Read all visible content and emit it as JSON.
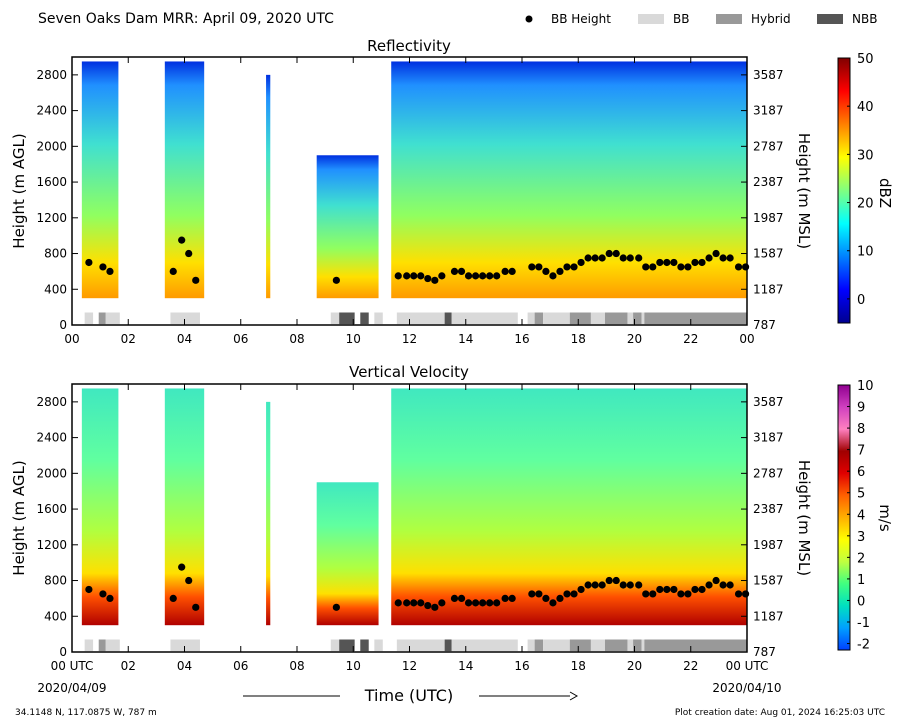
{
  "header": {
    "title": "Seven Oaks Dam MRR:  April 09, 2020 UTC",
    "legend": [
      {
        "key": "bb_height",
        "label": "BB Height",
        "color": "#000000",
        "marker": "dot"
      },
      {
        "key": "bb",
        "label": "BB",
        "color": "#d9d9d9",
        "marker": "box"
      },
      {
        "key": "hybrid",
        "label": "Hybrid",
        "color": "#999999",
        "marker": "box"
      },
      {
        "key": "nbb",
        "label": "NBB",
        "color": "#555555",
        "marker": "box"
      }
    ]
  },
  "footer": {
    "location": "34.1148 N, 117.0875 W, 787 m",
    "creation": "Plot creation date: Aug 01, 2024 16:25:03 UTC",
    "xlabel": "Time (UTC)",
    "start_date": "2020/04/09",
    "end_date": "2020/04/10"
  },
  "chart_data": [
    {
      "type": "heatmap",
      "title": "Reflectivity",
      "ylabel": "Height (m AGL)",
      "y2label": "Height (m MSL)",
      "colorbar_label": "dBZ",
      "colorbar_ticks": [
        0,
        10,
        20,
        30,
        40,
        50
      ],
      "colorbar_range": [
        -5,
        50
      ],
      "colormap": [
        "#00008f",
        "#0000ff",
        "#0080ff",
        "#00ffff",
        "#80ff80",
        "#ffff00",
        "#ff8000",
        "#ff0000",
        "#800000"
      ],
      "x_ticks": [
        "00",
        "02",
        "04",
        "06",
        "08",
        "10",
        "12",
        "14",
        "16",
        "18",
        "20",
        "22",
        "00"
      ],
      "xlim": [
        0,
        24
      ],
      "y_ticks": [
        0,
        400,
        800,
        1200,
        1600,
        2000,
        2400,
        2800
      ],
      "y2_ticks": [
        787,
        1187,
        1587,
        1987,
        2387,
        2787,
        3187,
        3587
      ],
      "ylim": [
        0,
        3000
      ]
    },
    {
      "type": "heatmap",
      "title": "Vertical Velocity",
      "ylabel": "Height (m AGL)",
      "y2label": "Height (m MSL)",
      "colorbar_label": "m/s",
      "colorbar_ticks": [
        -2,
        -1,
        0,
        1,
        2,
        3,
        4,
        5,
        6,
        7,
        8,
        9,
        10
      ],
      "colorbar_range": [
        -2.3,
        10
      ],
      "colormap": [
        "#0040ff",
        "#00a0ff",
        "#00e0c0",
        "#40ff80",
        "#c0ff40",
        "#ffff00",
        "#ffb000",
        "#ff6000",
        "#e00000",
        "#a00000",
        "#ff80c0",
        "#d040c0",
        "#900090"
      ],
      "x_ticks": [
        "00 UTC",
        "02",
        "04",
        "06",
        "08",
        "10",
        "12",
        "14",
        "16",
        "18",
        "20",
        "22",
        "00 UTC"
      ],
      "xlim": [
        0,
        24
      ],
      "y_ticks": [
        0,
        400,
        800,
        1200,
        1600,
        2000,
        2400,
        2800
      ],
      "y2_ticks": [
        787,
        1187,
        1587,
        1987,
        2387,
        2787,
        3187,
        3587
      ],
      "ylim": [
        0,
        3000
      ]
    }
  ],
  "bb_height": {
    "t": [
      0.6,
      1.1,
      1.35,
      3.6,
      3.9,
      4.15,
      4.4,
      9.4,
      11.6,
      11.9,
      12.15,
      12.4,
      12.65,
      12.9,
      13.15,
      13.6,
      13.85,
      14.1,
      14.35,
      14.6,
      14.85,
      15.1,
      15.4,
      15.65,
      16.35,
      16.6,
      16.85,
      17.1,
      17.35,
      17.6,
      17.85,
      18.1,
      18.35,
      18.6,
      18.85,
      19.1,
      19.35,
      19.6,
      19.85,
      20.15,
      20.4,
      20.65,
      20.9,
      21.15,
      21.4,
      21.65,
      21.9,
      22.15,
      22.4,
      22.65,
      22.9,
      23.15,
      23.4,
      23.7,
      23.95
    ],
    "h": [
      700,
      650,
      600,
      600,
      950,
      800,
      500,
      500,
      550,
      550,
      550,
      550,
      520,
      500,
      550,
      600,
      600,
      550,
      550,
      550,
      550,
      550,
      600,
      600,
      650,
      650,
      600,
      550,
      600,
      650,
      650,
      700,
      750,
      750,
      750,
      800,
      800,
      750,
      750,
      750,
      650,
      650,
      700,
      700,
      700,
      650,
      650,
      700,
      700,
      750,
      800,
      750,
      750,
      650,
      650
    ]
  },
  "rain_type": [
    {
      "start": 0.45,
      "end": 0.75,
      "type": "bb"
    },
    {
      "start": 0.95,
      "end": 1.2,
      "type": "hybrid"
    },
    {
      "start": 1.2,
      "end": 1.7,
      "type": "bb"
    },
    {
      "start": 3.5,
      "end": 4.55,
      "type": "bb"
    },
    {
      "start": 9.2,
      "end": 9.5,
      "type": "bb"
    },
    {
      "start": 9.5,
      "end": 10.05,
      "type": "nbb"
    },
    {
      "start": 10.25,
      "end": 10.55,
      "type": "nbb"
    },
    {
      "start": 10.75,
      "end": 11.05,
      "type": "bb"
    },
    {
      "start": 11.55,
      "end": 13.25,
      "type": "bb"
    },
    {
      "start": 13.25,
      "end": 13.5,
      "type": "nbb"
    },
    {
      "start": 13.5,
      "end": 15.85,
      "type": "bb"
    },
    {
      "start": 16.2,
      "end": 16.45,
      "type": "bb"
    },
    {
      "start": 16.45,
      "end": 16.75,
      "type": "hybrid"
    },
    {
      "start": 16.75,
      "end": 17.7,
      "type": "bb"
    },
    {
      "start": 17.7,
      "end": 18.45,
      "type": "hybrid"
    },
    {
      "start": 18.45,
      "end": 18.95,
      "type": "bb"
    },
    {
      "start": 18.95,
      "end": 19.75,
      "type": "hybrid"
    },
    {
      "start": 19.75,
      "end": 19.95,
      "type": "bb"
    },
    {
      "start": 19.95,
      "end": 20.25,
      "type": "hybrid"
    },
    {
      "start": 20.25,
      "end": 20.35,
      "type": "bb"
    },
    {
      "start": 20.35,
      "end": 24,
      "type": "hybrid"
    }
  ],
  "echo_segments": [
    {
      "start": 0.35,
      "end": 1.65,
      "top": 2950
    },
    {
      "start": 3.3,
      "end": 4.7,
      "top": 2950
    },
    {
      "start": 6.9,
      "end": 7.05,
      "top": 2800
    },
    {
      "start": 8.7,
      "end": 10.9,
      "top": 1900
    },
    {
      "start": 11.35,
      "end": 24,
      "top": 2950
    }
  ]
}
